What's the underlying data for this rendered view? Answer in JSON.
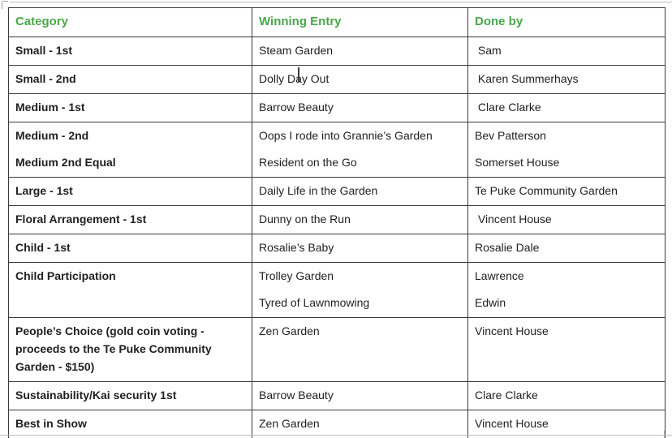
{
  "colors": {
    "header_text": "#4aa64a",
    "body_text": "#1f1f1f",
    "table_border": "#3b3b3b",
    "page_boundary_line": "#bdbdbd"
  },
  "table": {
    "headers": [
      "Category",
      "Winning Entry",
      "Done by"
    ],
    "rows": [
      {
        "category": [
          "Small - 1st"
        ],
        "winning_entry": [
          "Steam Garden"
        ],
        "done_by": [
          " Sam"
        ]
      },
      {
        "category": [
          "Small - 2nd"
        ],
        "winning_entry": [
          "Dolly Day Out"
        ],
        "done_by": [
          " Karen Summerhays"
        ]
      },
      {
        "category": [
          "Medium - 1st"
        ],
        "winning_entry": [
          "Barrow Beauty"
        ],
        "done_by": [
          " Clare Clarke"
        ]
      },
      {
        "category": [
          "Medium - 2nd",
          "Medium 2nd Equal"
        ],
        "winning_entry": [
          "Oops I rode into Grannie’s Garden",
          "Resident on the Go"
        ],
        "done_by": [
          "Bev Patterson",
          "Somerset House"
        ]
      },
      {
        "category": [
          "Large - 1st"
        ],
        "winning_entry": [
          "Daily Life in the Garden"
        ],
        "done_by": [
          "Te Puke Community Garden"
        ]
      },
      {
        "category": [
          "Floral Arrangement - 1st"
        ],
        "winning_entry": [
          "Dunny on the Run"
        ],
        "done_by": [
          " Vincent House"
        ]
      },
      {
        "category": [
          "Child - 1st"
        ],
        "winning_entry": [
          "Rosalie’s Baby"
        ],
        "done_by": [
          "Rosalie Dale"
        ]
      },
      {
        "category": [
          "Child Participation"
        ],
        "winning_entry": [
          "Trolley Garden",
          "Tyred of Lawnmowing"
        ],
        "done_by": [
          "Lawrence",
          "Edwin"
        ]
      },
      {
        "category": [
          "People’s Choice (gold coin voting - proceeds to the Te Puke Community Garden - $150)"
        ],
        "winning_entry": [
          "Zen Garden"
        ],
        "done_by": [
          "Vincent House"
        ]
      },
      {
        "category": [
          "Sustainability/Kai security 1st"
        ],
        "winning_entry": [
          "Barrow Beauty"
        ],
        "done_by": [
          "Clare Clarke"
        ]
      },
      {
        "category": [
          "Best in Show"
        ],
        "winning_entry": [
          "Zen Garden"
        ],
        "done_by": [
          "Vincent House"
        ]
      }
    ]
  },
  "caret": {
    "note": "text insertion cursor shown after the word Day in Dolly Day Out"
  }
}
